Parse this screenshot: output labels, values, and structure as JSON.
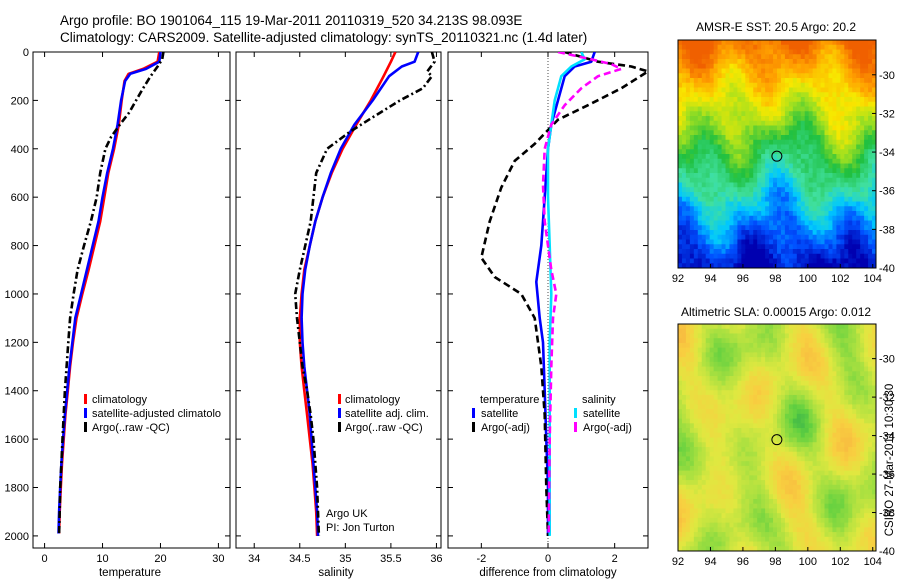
{
  "title_lines": [
    "Argo profile: BO 1901064_115 19-Mar-2011 20110319_520 34.213S 98.093E",
    "Climatology: CARS2009. Satellite-adjusted climatology: synTS_20110321.nc (1.4d later)"
  ],
  "side_label": "CSIRO 27-Mar-2011 10:30:30",
  "chart_data": [
    {
      "type": "line",
      "id": "temperature",
      "xlabel": "temperature",
      "xlim": [
        -2,
        32
      ],
      "ylim": [
        2050,
        0
      ],
      "xticks": [
        0,
        10,
        20,
        30
      ],
      "yticks": [
        0,
        200,
        400,
        600,
        800,
        1000,
        1200,
        1400,
        1600,
        1800,
        2000
      ],
      "legend_entries": [
        "climatology",
        "satellite-adjusted climatolo",
        "Argo(..raw -QC)"
      ],
      "series": [
        {
          "name": "climatology",
          "color": "#ff0000",
          "style": "solid",
          "points": [
            [
              19.8,
              0
            ],
            [
              19.5,
              40
            ],
            [
              17,
              70
            ],
            [
              14.5,
              90
            ],
            [
              13.8,
              120
            ],
            [
              13.3,
              200
            ],
            [
              12.8,
              300
            ],
            [
              12,
              400
            ],
            [
              11,
              500
            ],
            [
              10.3,
              600
            ],
            [
              9.6,
              700
            ],
            [
              8.6,
              800
            ],
            [
              7.6,
              900
            ],
            [
              6.5,
              1000
            ],
            [
              5.5,
              1100
            ],
            [
              4.9,
              1200
            ],
            [
              4.4,
              1300
            ],
            [
              4,
              1400
            ],
            [
              3.6,
              1500
            ],
            [
              3.3,
              1600
            ],
            [
              3,
              1700
            ],
            [
              2.8,
              1800
            ],
            [
              2.6,
              1900
            ],
            [
              2.5,
              1990
            ]
          ]
        },
        {
          "name": "satellite-adjusted climatology",
          "color": "#0000ff",
          "style": "solid",
          "points": [
            [
              20,
              0
            ],
            [
              19.8,
              40
            ],
            [
              17.5,
              70
            ],
            [
              14.8,
              90
            ],
            [
              13.9,
              120
            ],
            [
              13.2,
              200
            ],
            [
              12.6,
              300
            ],
            [
              11.8,
              400
            ],
            [
              10.8,
              500
            ],
            [
              10,
              600
            ],
            [
              9.3,
              700
            ],
            [
              8.3,
              800
            ],
            [
              7.3,
              900
            ],
            [
              6.3,
              1000
            ],
            [
              5.3,
              1100
            ],
            [
              4.8,
              1200
            ],
            [
              4.3,
              1300
            ],
            [
              3.9,
              1400
            ],
            [
              3.5,
              1500
            ],
            [
              3.2,
              1600
            ],
            [
              2.9,
              1700
            ],
            [
              2.7,
              1800
            ],
            [
              2.5,
              1900
            ],
            [
              2.4,
              1990
            ]
          ]
        },
        {
          "name": "Argo(..raw -QC)",
          "color": "#000000",
          "style": "dashdot",
          "points": [
            [
              20.5,
              0
            ],
            [
              20.3,
              30
            ],
            [
              19.5,
              60
            ],
            [
              18.3,
              100
            ],
            [
              17,
              150
            ],
            [
              15.8,
              200
            ],
            [
              14.6,
              250
            ],
            [
              13,
              300
            ],
            [
              11.5,
              350
            ],
            [
              10.5,
              400
            ],
            [
              9.6,
              500
            ],
            [
              9,
              600
            ],
            [
              8,
              700
            ],
            [
              6.8,
              800
            ],
            [
              5.7,
              900
            ],
            [
              5,
              1000
            ],
            [
              4.4,
              1100
            ],
            [
              4.1,
              1200
            ],
            [
              3.8,
              1300
            ],
            [
              3.5,
              1400
            ],
            [
              3.3,
              1500
            ],
            [
              3.1,
              1600
            ],
            [
              2.9,
              1700
            ],
            [
              2.7,
              1800
            ],
            [
              2.6,
              1900
            ],
            [
              2.5,
              1990
            ]
          ]
        }
      ]
    },
    {
      "type": "line",
      "id": "salinity",
      "xlabel": "salinity",
      "xlim": [
        33.8,
        36.05
      ],
      "ylim": [
        2050,
        0
      ],
      "xticks": [
        34,
        34.5,
        35,
        35.5,
        36
      ],
      "legend_entries": [
        "climatology",
        "satellite adj. clim.",
        "Argo(..raw -QC)"
      ],
      "annotation_lines": [
        "Argo UK",
        "PI: Jon Turton"
      ],
      "series": [
        {
          "name": "climatology",
          "color": "#ff0000",
          "style": "solid",
          "points": [
            [
              35.55,
              0
            ],
            [
              35.5,
              40
            ],
            [
              35.42,
              100
            ],
            [
              35.28,
              200
            ],
            [
              35.12,
              300
            ],
            [
              34.97,
              400
            ],
            [
              34.85,
              500
            ],
            [
              34.75,
              600
            ],
            [
              34.67,
              700
            ],
            [
              34.61,
              800
            ],
            [
              34.55,
              900
            ],
            [
              34.52,
              1000
            ],
            [
              34.5,
              1100
            ],
            [
              34.5,
              1200
            ],
            [
              34.52,
              1300
            ],
            [
              34.55,
              1400
            ],
            [
              34.58,
              1500
            ],
            [
              34.61,
              1600
            ],
            [
              34.64,
              1700
            ],
            [
              34.66,
              1800
            ],
            [
              34.68,
              1900
            ],
            [
              34.69,
              2000
            ]
          ]
        },
        {
          "name": "satellite adj. clim.",
          "color": "#0000ff",
          "style": "solid",
          "points": [
            [
              35.8,
              0
            ],
            [
              35.76,
              40
            ],
            [
              35.62,
              60
            ],
            [
              35.48,
              100
            ],
            [
              35.3,
              200
            ],
            [
              35.1,
              300
            ],
            [
              34.95,
              400
            ],
            [
              34.84,
              500
            ],
            [
              34.75,
              600
            ],
            [
              34.67,
              700
            ],
            [
              34.61,
              800
            ],
            [
              34.56,
              900
            ],
            [
              34.53,
              1000
            ],
            [
              34.52,
              1100
            ],
            [
              34.53,
              1200
            ],
            [
              34.55,
              1300
            ],
            [
              34.58,
              1400
            ],
            [
              34.61,
              1500
            ],
            [
              34.63,
              1600
            ],
            [
              34.65,
              1700
            ],
            [
              34.67,
              1800
            ],
            [
              34.69,
              1900
            ],
            [
              34.7,
              2000
            ]
          ]
        },
        {
          "name": "Argo(..raw -QC)",
          "color": "#000000",
          "style": "dashdot",
          "points": [
            [
              35.95,
              0
            ],
            [
              35.98,
              40
            ],
            [
              35.9,
              80
            ],
            [
              35.95,
              100
            ],
            [
              35.85,
              150
            ],
            [
              35.6,
              200
            ],
            [
              35.3,
              270
            ],
            [
              35.05,
              330
            ],
            [
              34.8,
              400
            ],
            [
              34.68,
              500
            ],
            [
              34.62,
              700
            ],
            [
              34.5,
              900
            ],
            [
              34.45,
              1000
            ],
            [
              34.47,
              1100
            ],
            [
              34.5,
              1200
            ],
            [
              34.53,
              1300
            ],
            [
              34.58,
              1400
            ],
            [
              34.62,
              1500
            ],
            [
              34.65,
              1600
            ],
            [
              34.67,
              1700
            ],
            [
              34.69,
              1800
            ],
            [
              34.7,
              1900
            ],
            [
              34.71,
              2000
            ]
          ]
        }
      ]
    },
    {
      "type": "line",
      "id": "difference",
      "xlabel": "difference from climatology",
      "xlim": [
        -3,
        3
      ],
      "ylim": [
        2050,
        0
      ],
      "xticks": [
        -2,
        0,
        2
      ],
      "legend": {
        "left_header": "temperature",
        "right_header": "salinity",
        "left_entries": [
          "satellite",
          "Argo(-adj)"
        ],
        "right_entries": [
          "satellite",
          "Argo(-adj)"
        ]
      },
      "series": [
        {
          "name": "temperature satellite",
          "color": "#0000ff",
          "style": "solid",
          "points": [
            [
              1.4,
              0
            ],
            [
              1.3,
              40
            ],
            [
              0.8,
              60
            ],
            [
              0.5,
              100
            ],
            [
              0.3,
              200
            ],
            [
              0.1,
              300
            ],
            [
              0.0,
              400
            ],
            [
              -0.1,
              600
            ],
            [
              -0.2,
              800
            ],
            [
              -0.35,
              950
            ],
            [
              -0.25,
              1100
            ],
            [
              -0.15,
              1200
            ],
            [
              -0.1,
              1400
            ],
            [
              -0.05,
              1600
            ],
            [
              0,
              1800
            ],
            [
              0,
              2000
            ]
          ]
        },
        {
          "name": "temperature Argo(-adj)",
          "color": "#000000",
          "style": "dashed",
          "points": [
            [
              0.5,
              0
            ],
            [
              1.5,
              40
            ],
            [
              2.5,
              60
            ],
            [
              3,
              80
            ],
            [
              2.2,
              150
            ],
            [
              1.2,
              220
            ],
            [
              0.3,
              280
            ],
            [
              -0.4,
              380
            ],
            [
              -1.0,
              450
            ],
            [
              -1.4,
              560
            ],
            [
              -1.75,
              700
            ],
            [
              -2.0,
              850
            ],
            [
              -1.6,
              930
            ],
            [
              -0.8,
              1000
            ],
            [
              -0.4,
              1100
            ],
            [
              -0.2,
              1300
            ],
            [
              -0.1,
              1500
            ],
            [
              -0.05,
              1800
            ],
            [
              0,
              2000
            ]
          ]
        },
        {
          "name": "salinity satellite",
          "color": "#00e0ff",
          "style": "solid",
          "points": [
            [
              1,
              0
            ],
            [
              1.1,
              30
            ],
            [
              0.7,
              60
            ],
            [
              0.4,
              100
            ],
            [
              0.3,
              150
            ],
            [
              0.2,
              200
            ],
            [
              0.1,
              300
            ],
            [
              0,
              400
            ],
            [
              0,
              600
            ],
            [
              0.05,
              800
            ],
            [
              0.1,
              1000
            ],
            [
              0.05,
              1200
            ],
            [
              0.05,
              1400
            ],
            [
              0.05,
              1600
            ],
            [
              0.05,
              1800
            ],
            [
              0.05,
              2000
            ]
          ]
        },
        {
          "name": "salinity Argo(-adj)",
          "color": "#ff00ff",
          "style": "dashed",
          "points": [
            [
              0.3,
              0
            ],
            [
              1.3,
              30
            ],
            [
              1.9,
              50
            ],
            [
              2.2,
              70
            ],
            [
              1.5,
              100
            ],
            [
              1.0,
              150
            ],
            [
              0.5,
              220
            ],
            [
              0.1,
              300
            ],
            [
              -0.1,
              400
            ],
            [
              -0.15,
              550
            ],
            [
              -0.1,
              700
            ],
            [
              0.1,
              900
            ],
            [
              0.25,
              1000
            ],
            [
              0.15,
              1100
            ],
            [
              0.1,
              1300
            ],
            [
              0.05,
              1600
            ],
            [
              0.02,
              2000
            ]
          ]
        }
      ]
    },
    {
      "type": "heatmap",
      "id": "sst",
      "title": "AMSR-E SST: 20.5 Argo: 20.2",
      "xlim": [
        92,
        104.2
      ],
      "ylim": [
        -40,
        -28.2
      ],
      "xticks": [
        92,
        94,
        96,
        98,
        100,
        102,
        104
      ],
      "yticks": [
        -30,
        -32,
        -34,
        -36,
        -38,
        -40
      ],
      "marker": {
        "lon": 98.093,
        "lat": -34.213
      },
      "palette": [
        "#0000b0",
        "#0050ff",
        "#00c8ff",
        "#40e0a0",
        "#20c040",
        "#a0e020",
        "#f8e800",
        "#ffa000",
        "#f06000"
      ]
    },
    {
      "type": "heatmap",
      "id": "sla",
      "title": "Altimetric SLA: 0.00015 Argo: 0.012",
      "xlim": [
        92,
        104.2
      ],
      "ylim": [
        -40,
        -28.2
      ],
      "xticks": [
        92,
        94,
        96,
        98,
        100,
        102,
        104
      ],
      "yticks": [
        -30,
        -32,
        -34,
        -36,
        -38,
        -40
      ],
      "marker": {
        "lon": 98.093,
        "lat": -34.213
      },
      "palette": [
        "#20a050",
        "#60d040",
        "#a8e040",
        "#e0e840",
        "#f8d040",
        "#f8b040"
      ]
    }
  ]
}
